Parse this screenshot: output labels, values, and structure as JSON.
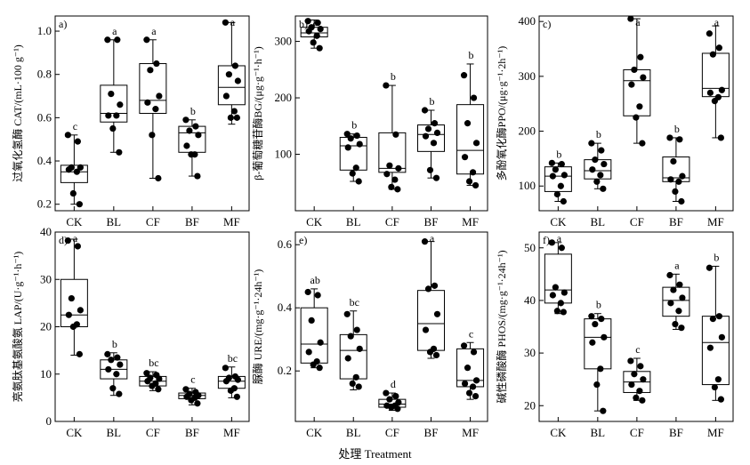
{
  "figure": {
    "x_title": "处理 Treatment"
  },
  "chart_data": [
    {
      "type": "box",
      "panel": "a)",
      "ylabel": "过氧化氢酶 CAT/(mL·100 g⁻¹)",
      "ylim": [
        0.17,
        1.07
      ],
      "yticks": [
        0.2,
        0.4,
        0.6,
        0.8,
        1.0
      ],
      "ytick_labels": [
        "0.2",
        "0.4",
        "0.6",
        "0.8",
        "1.0"
      ],
      "categories": [
        "CK",
        "BL",
        "CF",
        "BF",
        "MF"
      ],
      "groups": [
        {
          "min": 0.2,
          "q1": 0.3,
          "median": 0.35,
          "q3": 0.38,
          "max": 0.52,
          "points": [
            0.52,
            0.49,
            0.37,
            0.37,
            0.36,
            0.35,
            0.25,
            0.2
          ],
          "sig": "c"
        },
        {
          "min": 0.44,
          "q1": 0.58,
          "median": 0.62,
          "q3": 0.75,
          "max": 0.96,
          "points": [
            0.96,
            0.96,
            0.71,
            0.66,
            0.61,
            0.61,
            0.55,
            0.44
          ],
          "sig": "a"
        },
        {
          "min": 0.32,
          "q1": 0.62,
          "median": 0.68,
          "q3": 0.85,
          "max": 0.96,
          "points": [
            0.96,
            0.85,
            0.82,
            0.7,
            0.67,
            0.64,
            0.52,
            0.32
          ],
          "sig": "a"
        },
        {
          "min": 0.33,
          "q1": 0.44,
          "median": 0.53,
          "q3": 0.56,
          "max": 0.59,
          "points": [
            0.59,
            0.56,
            0.54,
            0.52,
            0.47,
            0.43,
            0.43,
            0.33
          ],
          "sig": "b"
        },
        {
          "min": 0.57,
          "q1": 0.66,
          "median": 0.74,
          "q3": 0.84,
          "max": 1.04,
          "points": [
            1.04,
            0.84,
            0.8,
            0.77,
            0.7,
            0.63,
            0.6,
            0.6
          ],
          "sig": "a"
        }
      ]
    },
    {
      "type": "box",
      "panel": "b)",
      "ylabel": "β-葡萄糖苷酶BG/(μg·g⁻¹·h⁻¹)",
      "ylim": [
        0,
        345
      ],
      "yticks": [
        100,
        200,
        300
      ],
      "ytick_labels": [
        "100",
        "200",
        "300"
      ],
      "categories": [
        "CK",
        "BL",
        "CF",
        "BF",
        "MF"
      ],
      "groups": [
        {
          "min": 288,
          "q1": 308,
          "median": 315,
          "q3": 325,
          "max": 338,
          "points": [
            336,
            333,
            325,
            322,
            318,
            310,
            298,
            288
          ],
          "sig": "a"
        },
        {
          "min": 52,
          "q1": 72,
          "median": 115,
          "q3": 130,
          "max": 136,
          "points": [
            136,
            133,
            128,
            118,
            112,
            76,
            66,
            52
          ],
          "sig": "b"
        },
        {
          "min": 38,
          "q1": 68,
          "median": 75,
          "q3": 138,
          "max": 222,
          "points": [
            222,
            135,
            80,
            75,
            65,
            55,
            42,
            38
          ],
          "sig": "b"
        },
        {
          "min": 58,
          "q1": 105,
          "median": 135,
          "q3": 152,
          "max": 178,
          "points": [
            178,
            155,
            145,
            138,
            132,
            120,
            72,
            58
          ],
          "sig": "b"
        },
        {
          "min": 45,
          "q1": 65,
          "median": 107,
          "q3": 188,
          "max": 260,
          "points": [
            240,
            200,
            155,
            120,
            95,
            68,
            52,
            45
          ],
          "sig": "b"
        }
      ]
    },
    {
      "type": "box",
      "panel": "c)",
      "ylabel": "多酚氧化酶PPO/(μg·g⁻¹·2h⁻¹)",
      "ylim": [
        55,
        410
      ],
      "yticks": [
        100,
        200,
        300,
        400
      ],
      "ytick_labels": [
        "100",
        "200",
        "300",
        "400"
      ],
      "categories": [
        "CK",
        "BL",
        "CF",
        "BF",
        "MF"
      ],
      "groups": [
        {
          "min": 72,
          "q1": 90,
          "median": 118,
          "q3": 135,
          "max": 142,
          "points": [
            142,
            140,
            130,
            120,
            118,
            100,
            85,
            72
          ],
          "sig": "b"
        },
        {
          "min": 95,
          "q1": 113,
          "median": 128,
          "q3": 148,
          "max": 178,
          "points": [
            178,
            165,
            148,
            140,
            130,
            120,
            108,
            95
          ],
          "sig": "b"
        },
        {
          "min": 178,
          "q1": 228,
          "median": 292,
          "q3": 312,
          "max": 405,
          "points": [
            405,
            335,
            312,
            298,
            285,
            245,
            225,
            178
          ],
          "sig": "a"
        },
        {
          "min": 72,
          "q1": 108,
          "median": 115,
          "q3": 153,
          "max": 188,
          "points": [
            188,
            185,
            145,
            118,
            112,
            108,
            90,
            72
          ],
          "sig": "b"
        },
        {
          "min": 188,
          "q1": 263,
          "median": 278,
          "q3": 342,
          "max": 392,
          "points": [
            378,
            352,
            340,
            275,
            270,
            262,
            255,
            188
          ],
          "sig": "a"
        }
      ]
    },
    {
      "type": "box",
      "panel": "d)",
      "ylabel": "亮氨肽基氨酸氨 LAP/(U·g⁻¹·h⁻¹)",
      "ylim": [
        0,
        40
      ],
      "yticks": [
        0,
        10,
        20,
        30,
        40
      ],
      "ytick_labels": [
        "0",
        "10",
        "20",
        "30",
        "40"
      ],
      "categories": [
        "CK",
        "BL",
        "CF",
        "BF",
        "MF"
      ],
      "groups": [
        {
          "min": 14,
          "q1": 20,
          "median": 22.5,
          "q3": 30,
          "max": 38.5,
          "points": [
            38.2,
            37,
            26,
            23.5,
            22.5,
            20.5,
            20,
            14.2
          ],
          "sig": "a"
        },
        {
          "min": 5.5,
          "q1": 9,
          "median": 11,
          "q3": 13,
          "max": 14.5,
          "points": [
            14.2,
            13.5,
            13,
            12,
            11,
            10,
            7,
            5.8
          ],
          "sig": "b"
        },
        {
          "min": 6.5,
          "q1": 7.5,
          "median": 8.5,
          "q3": 9.5,
          "max": 10.5,
          "points": [
            10.2,
            9.8,
            9.2,
            9,
            8.5,
            8,
            7.5,
            6.8
          ],
          "sig": "bc"
        },
        {
          "min": 3.5,
          "q1": 4.8,
          "median": 5.5,
          "q3": 6,
          "max": 7,
          "points": [
            6.8,
            6.2,
            5.8,
            5.5,
            5.2,
            5,
            4.5,
            3.8
          ],
          "sig": "c"
        },
        {
          "min": 5,
          "q1": 7,
          "median": 8.5,
          "q3": 9.5,
          "max": 11.5,
          "points": [
            11.3,
            9.5,
            9.2,
            8.8,
            8.5,
            7,
            6.5,
            5.2
          ],
          "sig": "bc"
        }
      ]
    },
    {
      "type": "box",
      "panel": "e)",
      "ylabel": "脲酶 URE/(mg·g⁻¹·24h⁻¹)",
      "ylim": [
        0.04,
        0.64
      ],
      "yticks": [
        0.2,
        0.4,
        0.6
      ],
      "ytick_labels": [
        "0.2",
        "0.4",
        "0.6"
      ],
      "categories": [
        "CK",
        "BL",
        "CF",
        "BF",
        "MF"
      ],
      "groups": [
        {
          "min": 0.21,
          "q1": 0.225,
          "median": 0.285,
          "q3": 0.4,
          "max": 0.46,
          "points": [
            0.45,
            0.44,
            0.36,
            0.29,
            0.26,
            0.23,
            0.22,
            0.21
          ],
          "sig": "ab"
        },
        {
          "min": 0.14,
          "q1": 0.175,
          "median": 0.265,
          "q3": 0.315,
          "max": 0.39,
          "points": [
            0.38,
            0.33,
            0.31,
            0.27,
            0.24,
            0.18,
            0.16,
            0.15
          ],
          "sig": "bc"
        },
        {
          "min": 0.075,
          "q1": 0.085,
          "median": 0.095,
          "q3": 0.11,
          "max": 0.13,
          "points": [
            0.13,
            0.12,
            0.11,
            0.1,
            0.09,
            0.09,
            0.085,
            0.08
          ],
          "sig": "d"
        },
        {
          "min": 0.24,
          "q1": 0.265,
          "median": 0.35,
          "q3": 0.455,
          "max": 0.61,
          "points": [
            0.61,
            0.47,
            0.46,
            0.38,
            0.33,
            0.27,
            0.26,
            0.25
          ],
          "sig": "a"
        },
        {
          "min": 0.11,
          "q1": 0.15,
          "median": 0.17,
          "q3": 0.27,
          "max": 0.29,
          "points": [
            0.28,
            0.26,
            0.21,
            0.17,
            0.16,
            0.15,
            0.13,
            0.12
          ],
          "sig": "c"
        }
      ]
    },
    {
      "type": "box",
      "panel": "f)",
      "ylabel": "碱性磷酸酶 PHOS/(mg·g⁻¹·24h⁻¹)",
      "ylim": [
        17,
        53
      ],
      "yticks": [
        20,
        30,
        40,
        50
      ],
      "ytick_labels": [
        "20",
        "30",
        "40",
        "50"
      ],
      "categories": [
        "CK",
        "BL",
        "CF",
        "BF",
        "MF"
      ],
      "groups": [
        {
          "min": 37.5,
          "q1": 39.5,
          "median": 42,
          "q3": 48.8,
          "max": 51,
          "points": [
            51,
            50,
            42.5,
            41.5,
            41,
            39.5,
            38,
            37.8
          ],
          "sig": "a"
        },
        {
          "min": 19,
          "q1": 27,
          "median": 33,
          "q3": 36.5,
          "max": 37.5,
          "points": [
            37,
            36.5,
            35.5,
            33,
            32,
            27,
            24,
            19
          ],
          "sig": "b"
        },
        {
          "min": 21,
          "q1": 22.5,
          "median": 24.5,
          "q3": 26.5,
          "max": 29,
          "points": [
            28.5,
            27.5,
            26,
            25,
            24,
            22.8,
            21.5,
            21
          ],
          "sig": "c"
        },
        {
          "min": 34.5,
          "q1": 37,
          "median": 40,
          "q3": 42.5,
          "max": 45,
          "points": [
            44.8,
            43,
            42,
            40.5,
            39.5,
            38,
            35.5,
            34.8
          ],
          "sig": "a"
        },
        {
          "min": 21,
          "q1": 24,
          "median": 32,
          "q3": 37,
          "max": 46.5,
          "points": [
            46.2,
            37,
            36.5,
            33,
            31,
            25,
            23.5,
            21.2
          ],
          "sig": "b"
        }
      ]
    }
  ]
}
